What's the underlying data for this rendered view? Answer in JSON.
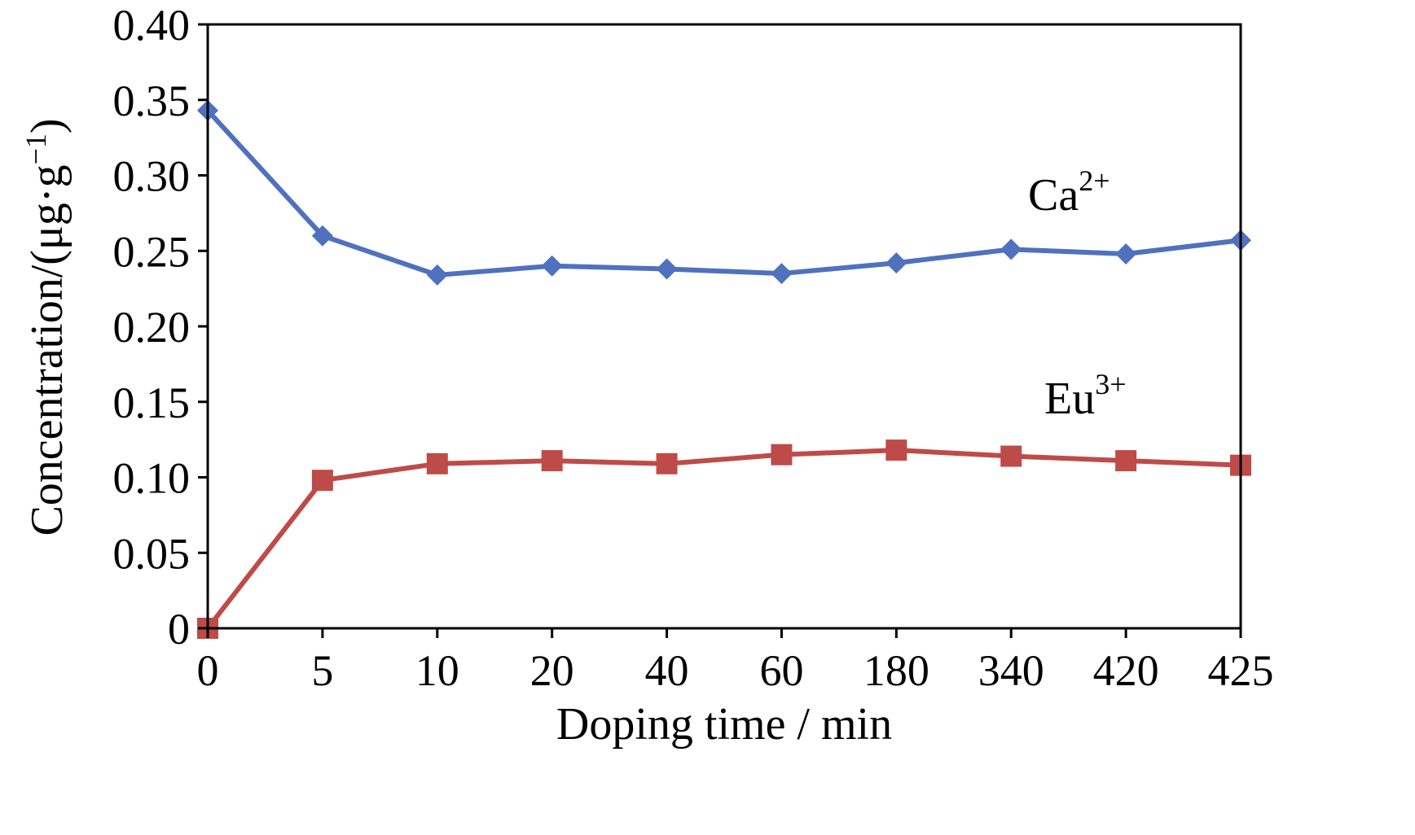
{
  "chart_data": {
    "type": "line",
    "xlabel": "Doping time / min",
    "ylabel": "Concentration/(μg·g",
    "ylabel_sup": "−1",
    "ylabel_close": ")",
    "categories": [
      "0",
      "5",
      "10",
      "20",
      "40",
      "60",
      "180",
      "340",
      "420",
      "425"
    ],
    "ylim": [
      0,
      0.4
    ],
    "yticks": [
      "0",
      "0.05",
      "0.10",
      "0.15",
      "0.20",
      "0.25",
      "0.30",
      "0.35",
      "0.40"
    ],
    "grid": false,
    "legend": "none",
    "series": [
      {
        "name": "Ca",
        "name_sup": "2+",
        "color": "#4F71BE",
        "marker": "diamond",
        "values": [
          0.343,
          0.26,
          0.234,
          0.24,
          0.238,
          0.235,
          0.242,
          0.251,
          0.248,
          0.257
        ]
      },
      {
        "name": "Eu",
        "name_sup": "3+",
        "color": "#BE4B48",
        "marker": "square",
        "values": [
          0.0,
          0.098,
          0.109,
          0.111,
          0.109,
          0.115,
          0.118,
          0.114,
          0.111,
          0.108
        ]
      }
    ]
  }
}
